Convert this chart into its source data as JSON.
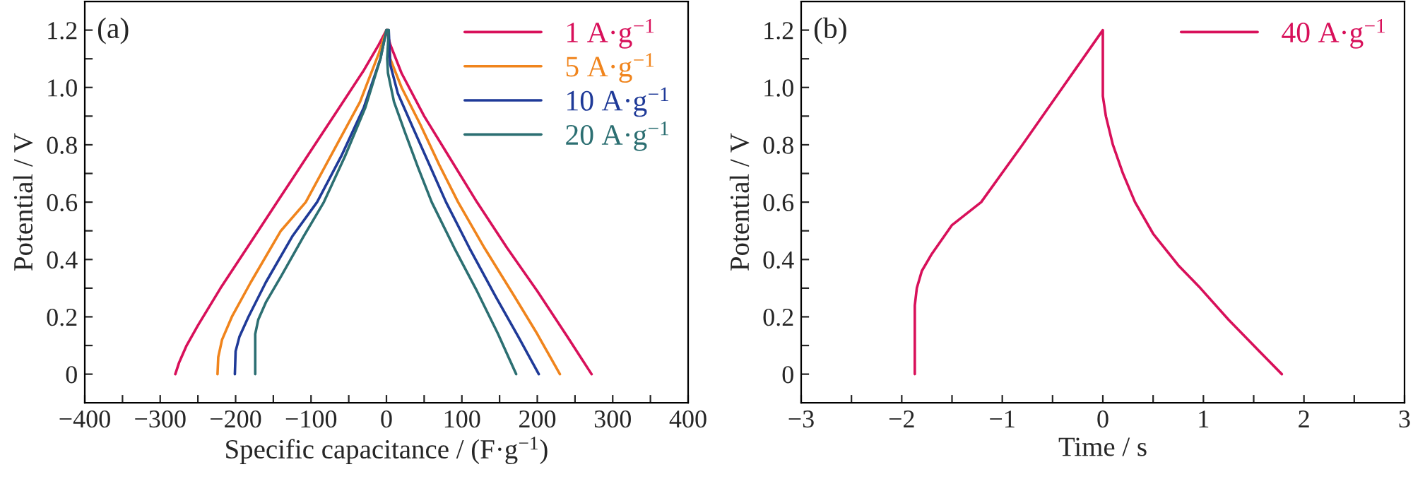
{
  "chart_data": [
    {
      "type": "line",
      "xlabel": "Specific capacitance / (F·g$^{−1}$)",
      "ylabel": "Potential / V",
      "annotations": [
        "(a)"
      ],
      "legend": "top right",
      "grid": false,
      "xlim": [
        -400,
        400
      ],
      "xticks": [
        {
          "value": -400,
          "label": "−400"
        },
        {
          "value": -350,
          "label": null
        },
        {
          "value": -300,
          "label": "−300"
        },
        {
          "value": -250,
          "label": null
        },
        {
          "value": -200,
          "label": "−200"
        },
        {
          "value": -150,
          "label": null
        },
        {
          "value": -100,
          "label": "−100"
        },
        {
          "value": -50,
          "label": null
        },
        0,
        {
          "value": 50,
          "label": null
        },
        100,
        {
          "value": 150,
          "label": null
        },
        200,
        {
          "value": 250,
          "label": null
        },
        300,
        {
          "value": 350,
          "label": null
        },
        400
      ],
      "ylim": [
        -0.1,
        1.3
      ],
      "yticks": [
        0,
        {
          "value": 0.1,
          "label": null
        },
        0.2,
        {
          "value": 0.3,
          "label": null
        },
        0.4,
        {
          "value": 0.5,
          "label": null
        },
        0.6,
        {
          "value": 0.7,
          "label": null
        },
        0.8,
        {
          "value": 0.9,
          "label": null
        },
        {
          "value": 1,
          "label": "1.0"
        },
        {
          "value": 1.1,
          "label": null
        },
        1.2
      ],
      "series": [
        {
          "name": "1 A·g$^{−1}$",
          "color": "#d8105a",
          "x": [
            -280,
            -275,
            -265,
            -250,
            -220,
            -180,
            -145,
            -100,
            -60,
            -30,
            -10,
            0,
            5,
            20,
            50,
            85,
            120,
            160,
            200,
            240,
            272
          ],
          "values": [
            0,
            0.04,
            0.1,
            0.17,
            0.3,
            0.46,
            0.6,
            0.78,
            0.94,
            1.06,
            1.15,
            1.2,
            1.15,
            1.05,
            0.9,
            0.75,
            0.6,
            0.44,
            0.29,
            0.13,
            0
          ]
        },
        {
          "name": "5 A·g$^{−1}$",
          "color": "#f0841c",
          "x": [
            -224,
            -223,
            -218,
            -205,
            -180,
            -140,
            -107,
            -70,
            -35,
            -10,
            0,
            2,
            5,
            20,
            45,
            70,
            95,
            130,
            170,
            200,
            230
          ],
          "values": [
            0,
            0.06,
            0.12,
            0.2,
            0.32,
            0.5,
            0.6,
            0.78,
            0.95,
            1.12,
            1.2,
            1.2,
            1.1,
            1.0,
            0.87,
            0.73,
            0.6,
            0.44,
            0.27,
            0.14,
            0
          ]
        },
        {
          "name": "10 A·g$^{−1}$",
          "color": "#1f3a98",
          "x": [
            -201,
            -200,
            -195,
            -183,
            -160,
            -125,
            -92,
            -60,
            -30,
            -8,
            0,
            3,
            5,
            15,
            35,
            57,
            79,
            110,
            145,
            175,
            202
          ],
          "values": [
            0,
            0.08,
            0.13,
            0.2,
            0.32,
            0.48,
            0.6,
            0.76,
            0.93,
            1.1,
            1.2,
            1.2,
            1.08,
            0.98,
            0.86,
            0.73,
            0.6,
            0.44,
            0.27,
            0.13,
            0
          ]
        },
        {
          "name": "20 A·g$^{−1}$",
          "color": "#2c6f72",
          "x": [
            -174,
            -174,
            -170,
            -160,
            -140,
            -110,
            -83,
            -55,
            -28,
            -8,
            0,
            3,
            1,
            2,
            10,
            25,
            42,
            60,
            90,
            120,
            148,
            172
          ],
          "values": [
            0,
            0.14,
            0.19,
            0.25,
            0.34,
            0.48,
            0.6,
            0.76,
            0.93,
            1.1,
            1.2,
            1.2,
            1.1,
            1.05,
            0.95,
            0.84,
            0.72,
            0.6,
            0.44,
            0.29,
            0.14,
            0
          ]
        }
      ]
    },
    {
      "type": "line",
      "xlabel": "Time / s",
      "ylabel": "Potential / V",
      "annotations": [
        "(b)"
      ],
      "legend": "top right",
      "grid": false,
      "xlim": [
        -3,
        3
      ],
      "xticks": [
        {
          "value": -3,
          "label": "−3"
        },
        {
          "value": -2.5,
          "label": null
        },
        {
          "value": -2,
          "label": "−2"
        },
        {
          "value": -1.5,
          "label": null
        },
        {
          "value": -1,
          "label": "−1"
        },
        {
          "value": -0.5,
          "label": null
        },
        0,
        {
          "value": 0.5,
          "label": null
        },
        1,
        {
          "value": 1.5,
          "label": null
        },
        2,
        {
          "value": 2.5,
          "label": null
        },
        3
      ],
      "ylim": [
        -0.1,
        1.3
      ],
      "yticks": [
        0,
        {
          "value": 0.1,
          "label": null
        },
        0.2,
        {
          "value": 0.3,
          "label": null
        },
        0.4,
        {
          "value": 0.5,
          "label": null
        },
        0.6,
        {
          "value": 0.7,
          "label": null
        },
        0.8,
        {
          "value": 0.9,
          "label": null
        },
        {
          "value": 1,
          "label": "1.0"
        },
        {
          "value": 1.1,
          "label": null
        },
        1.2
      ],
      "series": [
        {
          "name": "40 A·g$^{−1}$",
          "color": "#d8105a",
          "x": [
            -1.87,
            -1.87,
            -1.85,
            -1.8,
            -1.7,
            -1.5,
            -1.21,
            -0.8,
            -0.4,
            0,
            0,
            0.03,
            0.1,
            0.2,
            0.32,
            0.5,
            0.75,
            0.97,
            1.25,
            1.5,
            1.78
          ],
          "values": [
            0,
            0.24,
            0.3,
            0.36,
            0.42,
            0.52,
            0.6,
            0.8,
            1.0,
            1.2,
            0.97,
            0.9,
            0.8,
            0.7,
            0.6,
            0.49,
            0.38,
            0.3,
            0.19,
            0.1,
            0
          ]
        }
      ]
    }
  ]
}
